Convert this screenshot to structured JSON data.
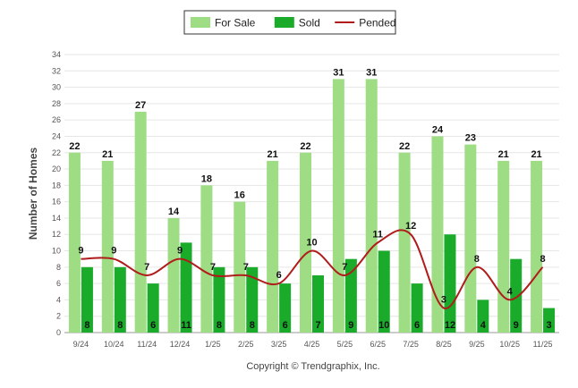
{
  "footer": "Copyright © Trendgraphix, Inc.",
  "chart_data": {
    "type": "bar",
    "ylabel": "Number of Homes",
    "ylim": [
      0,
      34
    ],
    "ytick_step": 2,
    "grid": true,
    "legend_position": "top-center",
    "categories": [
      "9/24",
      "10/24",
      "11/24",
      "12/24",
      "1/25",
      "2/25",
      "3/25",
      "4/25",
      "5/25",
      "6/25",
      "7/25",
      "8/25",
      "9/25",
      "10/25",
      "11/25"
    ],
    "series": [
      {
        "name": "For Sale",
        "kind": "bar",
        "color": "#9edd84",
        "values": [
          22,
          21,
          27,
          14,
          18,
          16,
          21,
          22,
          31,
          31,
          22,
          24,
          23,
          21,
          21
        ]
      },
      {
        "name": "Sold",
        "kind": "bar",
        "color": "#1aab2b",
        "values": [
          8,
          8,
          6,
          11,
          8,
          8,
          6,
          7,
          9,
          10,
          6,
          12,
          4,
          9,
          3
        ]
      },
      {
        "name": "Pended",
        "kind": "line",
        "color": "#b01c1c",
        "values": [
          9,
          9,
          7,
          9,
          7,
          7,
          6,
          10,
          7,
          11,
          12,
          3,
          8,
          4,
          8
        ]
      }
    ]
  }
}
